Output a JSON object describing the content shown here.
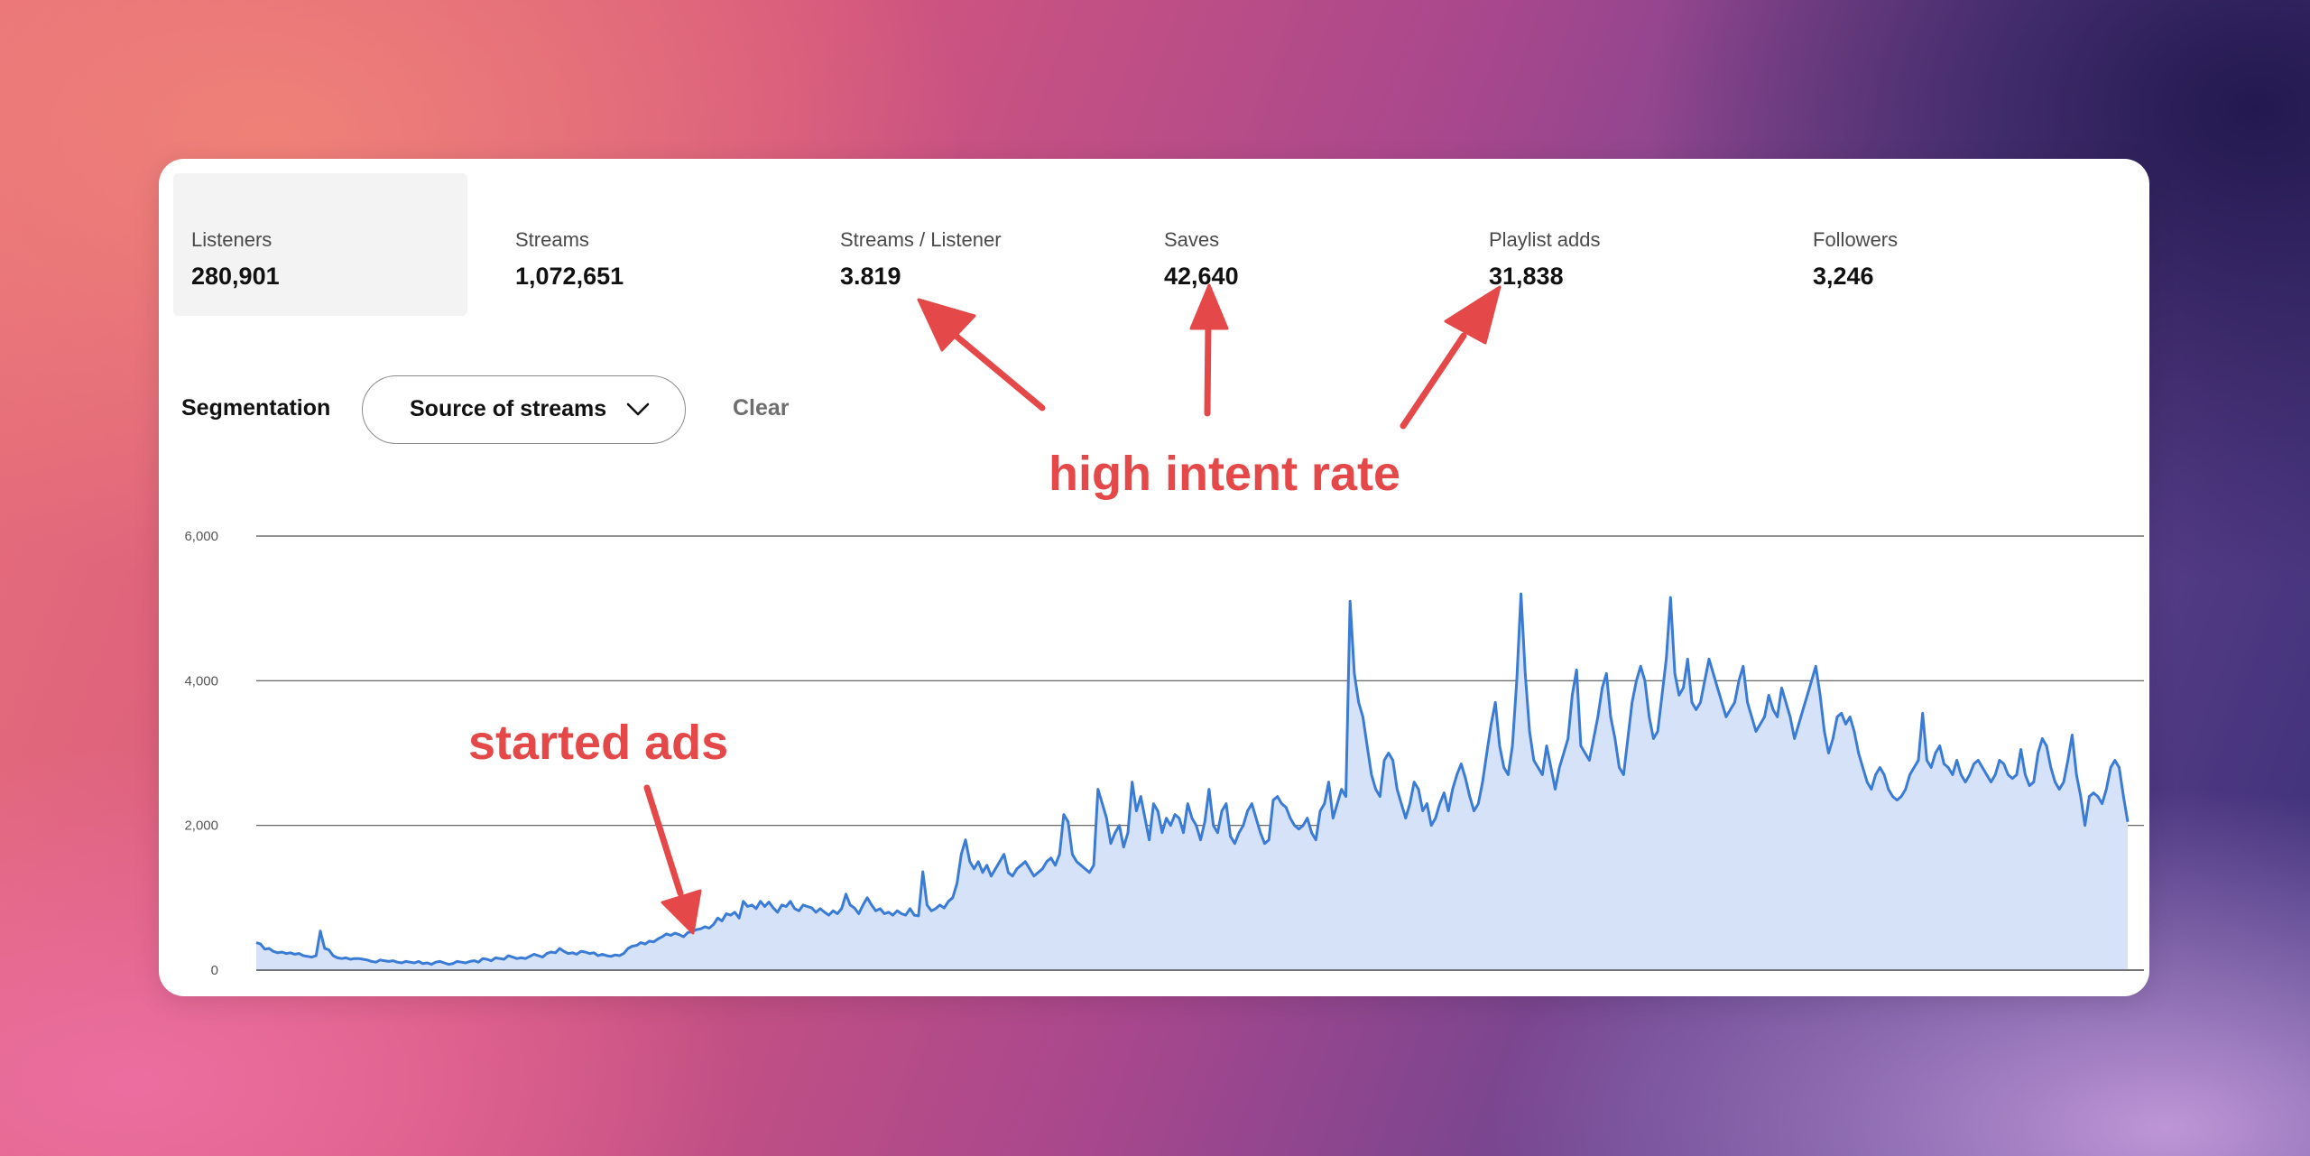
{
  "metrics": [
    {
      "label": "Listeners",
      "value": "280,901"
    },
    {
      "label": "Streams",
      "value": "1,072,651"
    },
    {
      "label": "Streams / Listener",
      "value": "3.819"
    },
    {
      "label": "Saves",
      "value": "42,640"
    },
    {
      "label": "Playlist adds",
      "value": "31,838"
    },
    {
      "label": "Followers",
      "value": "3,246"
    }
  ],
  "selected_metric": "Listeners",
  "segmentation": {
    "label": "Segmentation",
    "select_value": "Source of streams",
    "chevron_icon": "chevron-down-icon",
    "clear_label": "Clear"
  },
  "annotations": {
    "high_intent": "high intent rate",
    "started_ads": "started ads",
    "color": "#e54848"
  },
  "chart_data": {
    "type": "area",
    "y_ticks": [
      "6,000",
      "4,000",
      "2,000",
      "0"
    ],
    "ylim": [
      0,
      6000
    ],
    "line_color": "#3a7bd5",
    "fill_color": "#d6e2f7",
    "values": [
      380,
      360,
      290,
      300,
      260,
      240,
      250,
      230,
      240,
      220,
      230,
      200,
      190,
      180,
      200,
      540,
      300,
      280,
      200,
      170,
      160,
      170,
      150,
      160,
      160,
      150,
      140,
      120,
      110,
      140,
      130,
      120,
      130,
      110,
      100,
      120,
      110,
      100,
      120,
      90,
      100,
      80,
      110,
      120,
      100,
      80,
      90,
      120,
      110,
      100,
      120,
      130,
      110,
      160,
      150,
      130,
      170,
      160,
      150,
      200,
      180,
      160,
      170,
      160,
      190,
      220,
      200,
      180,
      230,
      250,
      240,
      300,
      260,
      230,
      240,
      220,
      260,
      250,
      230,
      240,
      200,
      220,
      200,
      190,
      210,
      200,
      230,
      300,
      330,
      340,
      380,
      360,
      400,
      390,
      430,
      460,
      500,
      480,
      510,
      490,
      460,
      520,
      530,
      560,
      570,
      600,
      580,
      630,
      720,
      680,
      780,
      760,
      800,
      720,
      950,
      880,
      900,
      850,
      950,
      880,
      940,
      860,
      800,
      900,
      880,
      950,
      850,
      820,
      900,
      880,
      860,
      800,
      850,
      800,
      760,
      820,
      780,
      850,
      1050,
      900,
      860,
      780,
      900,
      1000,
      900,
      820,
      850,
      780,
      800,
      760,
      820,
      780,
      760,
      850,
      760,
      750,
      1360,
      900,
      820,
      850,
      900,
      860,
      950,
      1000,
      1200,
      1600,
      1800,
      1500,
      1400,
      1500,
      1350,
      1450,
      1300,
      1400,
      1500,
      1600,
      1350,
      1300,
      1400,
      1450,
      1500,
      1400,
      1300,
      1350,
      1400,
      1500,
      1550,
      1450,
      1600,
      2150,
      2050,
      1600,
      1500,
      1450,
      1400,
      1350,
      1450,
      2500,
      2300,
      2100,
      1750,
      1900,
      2000,
      1700,
      1900,
      2600,
      2200,
      2400,
      2100,
      1800,
      2300,
      2200,
      1900,
      2100,
      2000,
      2150,
      2100,
      1900,
      2300,
      2100,
      2000,
      1800,
      2050,
      2500,
      2000,
      1900,
      2200,
      2300,
      1850,
      1750,
      1900,
      2000,
      2200,
      2300,
      2100,
      1900,
      1750,
      1800,
      2350,
      2400,
      2300,
      2250,
      2100,
      2000,
      1950,
      2000,
      2100,
      1900,
      1800,
      2200,
      2300,
      2600,
      2100,
      2300,
      2500,
      2400,
      5100,
      4100,
      3700,
      3500,
      3100,
      2700,
      2500,
      2400,
      2900,
      3000,
      2900,
      2500,
      2300,
      2100,
      2300,
      2600,
      2500,
      2200,
      2300,
      2000,
      2100,
      2300,
      2450,
      2200,
      2500,
      2700,
      2850,
      2650,
      2400,
      2200,
      2300,
      2600,
      3000,
      3400,
      3700,
      3100,
      2800,
      2700,
      3100,
      4000,
      5200,
      4100,
      3300,
      2900,
      2800,
      2700,
      3100,
      2800,
      2500,
      2800,
      3000,
      3200,
      3800,
      4150,
      3100,
      3000,
      2900,
      3200,
      3500,
      3900,
      4100,
      3500,
      3200,
      2800,
      2700,
      3200,
      3700,
      4000,
      4200,
      4000,
      3500,
      3200,
      3300,
      3800,
      4300,
      5150,
      4100,
      3800,
      3900,
      4300,
      3700,
      3600,
      3700,
      4000,
      4300,
      4100,
      3900,
      3700,
      3500,
      3600,
      3700,
      4000,
      4200,
      3700,
      3500,
      3300,
      3400,
      3500,
      3800,
      3600,
      3500,
      3900,
      3700,
      3500,
      3200,
      3400,
      3600,
      3800,
      4000,
      4200,
      3800,
      3300,
      3000,
      3200,
      3500,
      3550,
      3400,
      3500,
      3300,
      3000,
      2800,
      2600,
      2500,
      2700,
      2800,
      2700,
      2500,
      2400,
      2350,
      2400,
      2500,
      2700,
      2800,
      2900,
      3550,
      2900,
      2800,
      3000,
      3100,
      2850,
      2800,
      2700,
      2900,
      2700,
      2600,
      2700,
      2850,
      2900,
      2800,
      2700,
      2600,
      2700,
      2900,
      2850,
      2700,
      2650,
      2700,
      3050,
      2700,
      2550,
      2600,
      3000,
      3200,
      3100,
      2800,
      2600,
      2500,
      2600,
      2900,
      3250,
      2700,
      2400,
      2000,
      2400,
      2450,
      2400,
      2300,
      2500,
      2800,
      2900,
      2800,
      2400,
      2050
    ]
  }
}
